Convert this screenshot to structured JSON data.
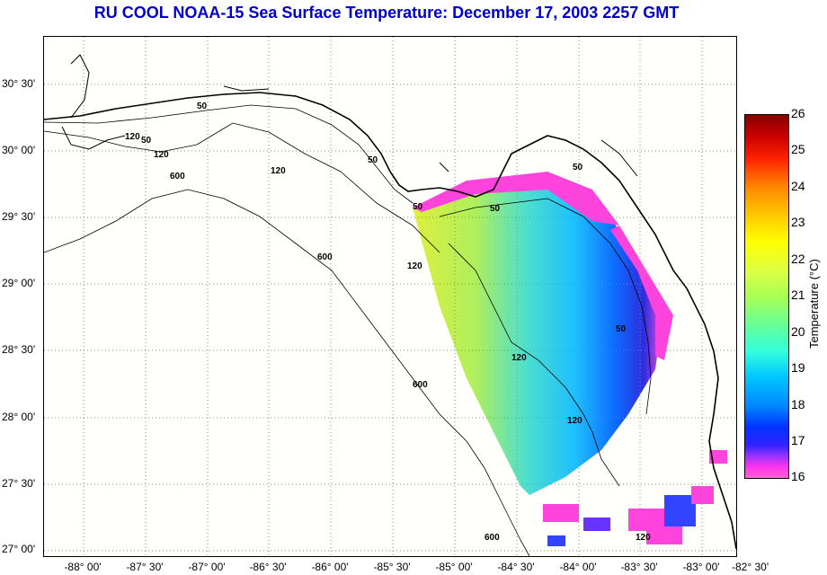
{
  "title": "RU COOL  NOAA-15  Sea Surface Temperature:  December 17, 2003 2257 GMT",
  "lat_labels": [
    "30° 30'",
    "30° 00'",
    "29° 30'",
    "29° 00'",
    "28° 30'",
    "28° 00'",
    "27° 30'",
    "27° 00'"
  ],
  "lon_labels": [
    "-88° 00'",
    "-87° 30'",
    "-87° 00'",
    "-86° 30'",
    "-86° 00'",
    "-85° 30'",
    "-85° 00'",
    "-84° 30'",
    "-84° 00'",
    "-83° 30'",
    "-83° 00'",
    "-82° 30'"
  ],
  "colorbar": {
    "title": "Temperature (°C)",
    "ticks": [
      "26",
      "25",
      "24",
      "23",
      "22",
      "21",
      "20",
      "19",
      "18",
      "17",
      "16"
    ],
    "min": 16,
    "max": 26
  },
  "contour_labels": [
    "50",
    "120",
    "50",
    "120",
    "120",
    "600",
    "600",
    "120",
    "50",
    "50",
    "120",
    "50",
    "120",
    "50",
    "600",
    "120",
    "50",
    "600"
  ],
  "colors": {
    "title": "#0000cc",
    "frame_bg": "#fffffb"
  }
}
